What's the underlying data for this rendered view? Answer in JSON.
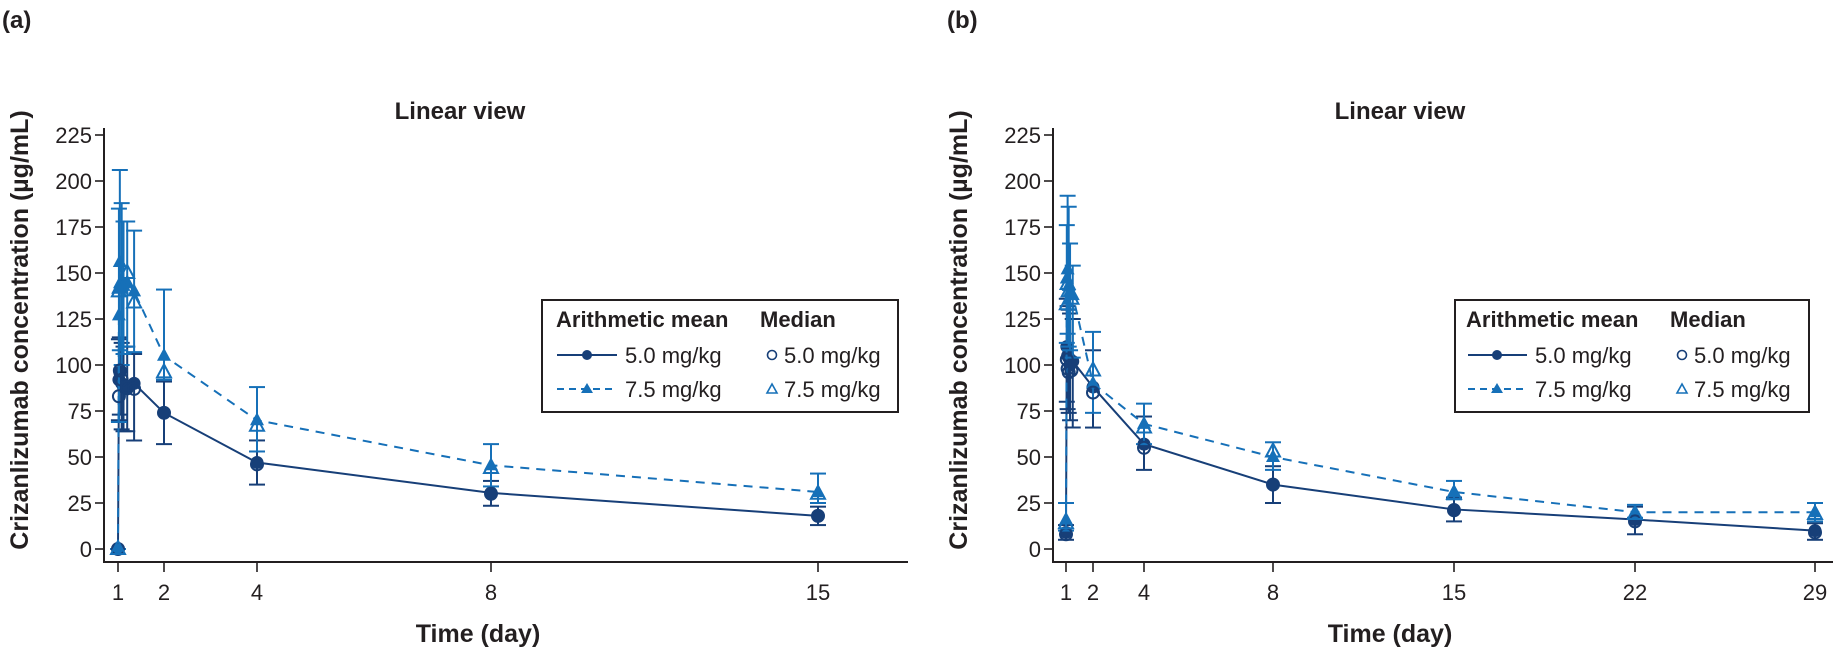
{
  "colors": {
    "dose_5": "#173f78",
    "dose_7_5": "#1670b8",
    "axis": "#231f20"
  },
  "legend": {
    "col1_title": "Arithmetic mean",
    "col2_title": "Median",
    "mean_5": "5.0 mg/kg",
    "mean_7_5": "7.5 mg/kg",
    "median_5": "5.0 mg/kg",
    "median_7_5": "7.5 mg/kg"
  },
  "chart_data": [
    {
      "panel": "(a)",
      "type": "line",
      "title": "Linear view",
      "xlabel": "Time (day)",
      "ylabel": "Crizanlizumab concentration (µg/mL)",
      "xticks": [
        1,
        2,
        4,
        8,
        15
      ],
      "yticks": [
        0,
        25,
        50,
        75,
        100,
        125,
        150,
        175,
        200,
        225
      ],
      "ylim": [
        -5,
        230
      ],
      "legend_position": "right",
      "series": [
        {
          "name": "Arithmetic mean 5.0 mg/kg",
          "style": "solid-filled-circle",
          "x": [
            1.0,
            1.02,
            1.04,
            1.08,
            1.12,
            1.2,
            1.35,
            2,
            4,
            8,
            15
          ],
          "y": [
            0,
            92,
            96,
            90,
            88,
            87,
            90,
            74,
            47,
            30.5,
            18
          ],
          "err_low": [
            0,
            70,
            73,
            65,
            64,
            64,
            59,
            57,
            35,
            23.5,
            13
          ],
          "err_high": [
            0,
            114,
            115,
            112,
            110,
            110,
            106,
            91,
            59,
            37,
            23
          ]
        },
        {
          "name": "Arithmetic mean 7.5 mg/kg",
          "style": "dashed-filled-triangle",
          "x": [
            1.0,
            1.02,
            1.04,
            1.08,
            1.12,
            1.2,
            1.35,
            2,
            4,
            8,
            15
          ],
          "y": [
            0,
            127,
            156,
            142,
            143,
            145,
            140,
            105,
            70,
            45.5,
            31
          ],
          "err_low": [
            0,
            69,
            108,
            100,
            106,
            110,
            107,
            92,
            53,
            34,
            25
          ],
          "err_high": [
            0,
            185,
            206,
            188,
            178,
            178,
            173,
            141,
            88,
            57,
            41
          ]
        },
        {
          "name": "Median 5.0 mg/kg",
          "style": "open-circle",
          "x": [
            1.0,
            1.02,
            1.04,
            1.08,
            1.2,
            1.35,
            2,
            4,
            8,
            15
          ],
          "y": [
            0,
            83,
            97,
            92,
            88,
            87,
            74,
            46,
            30,
            18
          ]
        },
        {
          "name": "Median 7.5 mg/kg",
          "style": "open-triangle",
          "x": [
            1.0,
            1.02,
            1.04,
            1.08,
            1.2,
            1.35,
            2,
            4,
            8,
            15
          ],
          "y": [
            0,
            140,
            142,
            145,
            150,
            134,
            96,
            67,
            44,
            30
          ]
        }
      ]
    },
    {
      "panel": "(b)",
      "type": "line",
      "title": "Linear view",
      "xlabel": "Time (day)",
      "ylabel": "Crizanlizumab concentration (µg/mL)",
      "xticks": [
        1,
        2,
        4,
        8,
        15,
        22,
        29
      ],
      "yticks": [
        0,
        25,
        50,
        75,
        100,
        125,
        150,
        175,
        200,
        225
      ],
      "ylim": [
        -5,
        230
      ],
      "legend_position": "right",
      "series": [
        {
          "name": "Arithmetic mean 5.0 mg/kg",
          "style": "solid-filled-circle",
          "x": [
            1.0,
            1.03,
            1.06,
            1.1,
            1.15,
            1.25,
            2,
            4,
            8,
            15,
            22,
            29
          ],
          "y": [
            9,
            110,
            105,
            104,
            100,
            102,
            88,
            57,
            35,
            21.5,
            16,
            10
          ],
          "err_low": [
            5,
            80,
            76,
            74,
            70,
            66,
            66,
            43,
            25,
            15,
            8,
            5
          ],
          "err_high": [
            13,
            136,
            132,
            130,
            128,
            125,
            108,
            72,
            45,
            28,
            23,
            14
          ]
        },
        {
          "name": "Arithmetic mean 7.5 mg/kg",
          "style": "dashed-filled-triangle",
          "x": [
            1.0,
            1.03,
            1.06,
            1.1,
            1.15,
            1.25,
            2,
            4,
            8,
            15,
            22,
            29
          ],
          "y": [
            16,
            147,
            152,
            143,
            140,
            138,
            90,
            68,
            50,
            31,
            20,
            20
          ],
          "err_low": [
            10,
            112,
            117,
            110,
            108,
            104,
            74,
            57,
            43,
            27,
            17,
            15
          ],
          "err_high": [
            25,
            176,
            192,
            186,
            166,
            154,
            118,
            79,
            58,
            37,
            24,
            25
          ]
        },
        {
          "name": "Median 5.0 mg/kg",
          "style": "open-circle",
          "x": [
            1.0,
            1.03,
            1.06,
            1.1,
            1.2,
            2,
            4,
            8,
            15,
            22,
            29
          ],
          "y": [
            8,
            103,
            98,
            96,
            97,
            85,
            55,
            35,
            21,
            15,
            9
          ]
        },
        {
          "name": "Median 7.5 mg/kg",
          "style": "open-triangle",
          "x": [
            1.0,
            1.03,
            1.06,
            1.1,
            1.2,
            2,
            4,
            8,
            15,
            22,
            29
          ],
          "y": [
            14,
            133,
            144,
            140,
            136,
            97,
            66,
            53,
            30,
            19,
            19
          ]
        }
      ]
    }
  ]
}
